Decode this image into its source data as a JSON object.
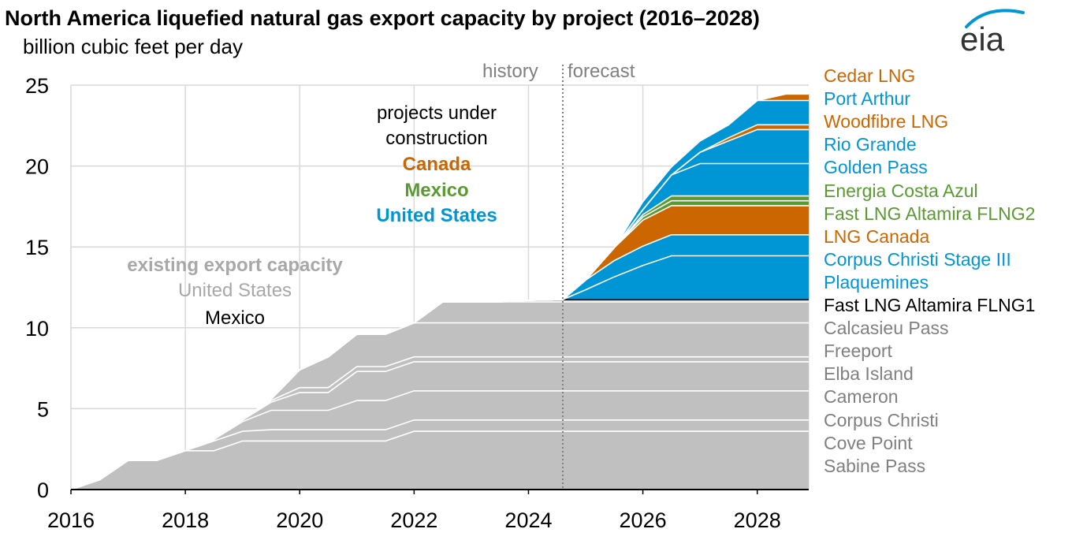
{
  "title": "North America liquefied natural gas export capacity by project (2016–2028)",
  "subtitle": "billion cubic feet per day",
  "logo_text": "eia",
  "colors": {
    "canada": "#cc6600",
    "mexico": "#5a9a32",
    "united_states": "#0096d6",
    "existing": "#c0c0c0",
    "existing_label": "#a8a8a8",
    "grid": "#d9d9d9",
    "divider": "#808080",
    "legend_gray": "#808080"
  },
  "annotations": {
    "history": "history",
    "forecast": "forecast",
    "under_construction_line1": "projects under",
    "under_construction_line2": "construction",
    "canada": "Canada",
    "mexico": "Mexico",
    "united_states": "United States",
    "existing_heading": "existing export capacity",
    "existing_us": "United States",
    "existing_mexico": "Mexico"
  },
  "chart_data": {
    "type": "area",
    "stacked": true,
    "title": "North America liquefied natural gas export capacity by project (2016–2028)",
    "ylabel": "billion cubic feet per day",
    "xlim": [
      2016,
      2028.9
    ],
    "ylim": [
      0,
      25
    ],
    "x_ticks": [
      "2016",
      "2018",
      "2020",
      "2022",
      "2024",
      "2026",
      "2028"
    ],
    "y_ticks": [
      "0",
      "5",
      "10",
      "15",
      "20",
      "25"
    ],
    "grid": true,
    "history_forecast_divider": 2024.6,
    "x": [
      2016,
      2016.5,
      2017,
      2017.5,
      2018,
      2018.5,
      2019,
      2019.5,
      2020,
      2020.5,
      2021,
      2021.5,
      2022,
      2022.5,
      2023,
      2023.5,
      2024,
      2024.6,
      2025,
      2025.5,
      2026,
      2026.5,
      2027,
      2027.5,
      2028,
      2028.5,
      2028.9
    ],
    "series": [
      {
        "name": "Sabine Pass",
        "group": "existing",
        "values": [
          0,
          0.6,
          1.8,
          1.8,
          2.4,
          2.4,
          3.0,
          3.0,
          3.0,
          3.0,
          3.0,
          3.0,
          3.6,
          3.6,
          3.6,
          3.6,
          3.6,
          3.6,
          3.6,
          3.6,
          3.6,
          3.6,
          3.6,
          3.6,
          3.6,
          3.6,
          3.6
        ]
      },
      {
        "name": "Cove Point",
        "group": "existing",
        "values": [
          0,
          0,
          0,
          0,
          0,
          0.6,
          0.6,
          0.7,
          0.7,
          0.7,
          0.7,
          0.7,
          0.7,
          0.7,
          0.7,
          0.7,
          0.7,
          0.7,
          0.7,
          0.7,
          0.7,
          0.7,
          0.7,
          0.7,
          0.7,
          0.7,
          0.7
        ]
      },
      {
        "name": "Corpus Christi",
        "group": "existing",
        "values": [
          0,
          0,
          0,
          0,
          0,
          0.1,
          0.6,
          1.2,
          1.2,
          1.2,
          1.8,
          1.8,
          1.8,
          1.8,
          1.8,
          1.8,
          1.8,
          1.8,
          1.8,
          1.8,
          1.8,
          1.8,
          1.8,
          1.8,
          1.8,
          1.8,
          1.8
        ]
      },
      {
        "name": "Cameron",
        "group": "existing",
        "values": [
          0,
          0,
          0,
          0,
          0,
          0,
          0.1,
          0.5,
          1.1,
          1.1,
          1.8,
          1.8,
          1.8,
          1.8,
          1.8,
          1.8,
          1.8,
          1.8,
          1.8,
          1.8,
          1.8,
          1.8,
          1.8,
          1.8,
          1.8,
          1.8,
          1.8
        ]
      },
      {
        "name": "Elba Island",
        "group": "existing",
        "values": [
          0,
          0,
          0,
          0,
          0,
          0,
          0,
          0.1,
          0.3,
          0.3,
          0.3,
          0.3,
          0.3,
          0.3,
          0.3,
          0.3,
          0.3,
          0.3,
          0.3,
          0.3,
          0.3,
          0.3,
          0.3,
          0.3,
          0.3,
          0.3,
          0.3
        ]
      },
      {
        "name": "Freeport",
        "group": "existing",
        "values": [
          0,
          0,
          0,
          0,
          0,
          0,
          0,
          0.1,
          1.1,
          1.9,
          2.0,
          2.0,
          2.1,
          2.1,
          2.1,
          2.1,
          2.1,
          2.1,
          2.1,
          2.1,
          2.1,
          2.1,
          2.1,
          2.1,
          2.1,
          2.1,
          2.1
        ]
      },
      {
        "name": "Calcasieu Pass",
        "group": "existing",
        "values": [
          0,
          0,
          0,
          0,
          0,
          0,
          0,
          0,
          0,
          0,
          0,
          0,
          0,
          1.3,
          1.3,
          1.3,
          1.3,
          1.3,
          1.3,
          1.3,
          1.3,
          1.3,
          1.3,
          1.3,
          1.3,
          1.3,
          1.3
        ]
      },
      {
        "name": "Fast LNG Altamira FLNG1",
        "group": "existing-mexico",
        "values": [
          0,
          0,
          0,
          0,
          0,
          0,
          0,
          0,
          0,
          0,
          0,
          0,
          0,
          0,
          0,
          0,
          0.1,
          0.15,
          0.15,
          0.15,
          0.15,
          0.15,
          0.15,
          0.15,
          0.15,
          0.15,
          0.15
        ]
      },
      {
        "name": "Plaquemines",
        "group": "us",
        "values": [
          0,
          0,
          0,
          0,
          0,
          0,
          0,
          0,
          0,
          0,
          0,
          0,
          0,
          0,
          0,
          0,
          0,
          0,
          0.6,
          1.4,
          2.1,
          2.7,
          2.7,
          2.7,
          2.7,
          2.7,
          2.7
        ]
      },
      {
        "name": "Corpus Christi Stage III",
        "group": "us",
        "values": [
          0,
          0,
          0,
          0,
          0,
          0,
          0,
          0,
          0,
          0,
          0,
          0,
          0,
          0,
          0,
          0,
          0,
          0,
          0.6,
          1.0,
          1.2,
          1.3,
          1.3,
          1.3,
          1.3,
          1.3,
          1.3
        ]
      },
      {
        "name": "LNG Canada",
        "group": "canada",
        "values": [
          0,
          0,
          0,
          0,
          0,
          0,
          0,
          0,
          0,
          0,
          0,
          0,
          0,
          0,
          0,
          0,
          0,
          0,
          0,
          0.8,
          1.6,
          1.8,
          1.8,
          1.8,
          1.8,
          1.8,
          1.8
        ]
      },
      {
        "name": "Fast LNG Altamira FLNG2",
        "group": "mexico",
        "values": [
          0,
          0,
          0,
          0,
          0,
          0,
          0,
          0,
          0,
          0,
          0,
          0,
          0,
          0,
          0,
          0,
          0,
          0,
          0,
          0,
          0.2,
          0.3,
          0.3,
          0.3,
          0.3,
          0.3,
          0.3
        ]
      },
      {
        "name": "Energia Costa Azul",
        "group": "mexico",
        "values": [
          0,
          0,
          0,
          0,
          0,
          0,
          0,
          0,
          0,
          0,
          0,
          0,
          0,
          0,
          0,
          0,
          0,
          0,
          0,
          0,
          0.15,
          0.3,
          0.3,
          0.3,
          0.3,
          0.3,
          0.3
        ]
      },
      {
        "name": "Golden Pass",
        "group": "us",
        "values": [
          0,
          0,
          0,
          0,
          0,
          0,
          0,
          0,
          0,
          0,
          0,
          0,
          0,
          0,
          0,
          0,
          0,
          0,
          0,
          0,
          0.3,
          1.3,
          2.0,
          2.0,
          2.0,
          2.0,
          2.0
        ]
      },
      {
        "name": "Rio Grande",
        "group": "us",
        "values": [
          0,
          0,
          0,
          0,
          0,
          0,
          0,
          0,
          0,
          0,
          0,
          0,
          0,
          0,
          0,
          0,
          0,
          0,
          0,
          0,
          0,
          0,
          0.7,
          1.4,
          2.1,
          2.1,
          2.1
        ]
      },
      {
        "name": "Woodfibre LNG",
        "group": "canada",
        "values": [
          0,
          0,
          0,
          0,
          0,
          0,
          0,
          0,
          0,
          0,
          0,
          0,
          0,
          0,
          0,
          0,
          0,
          0,
          0,
          0,
          0,
          0,
          0,
          0.2,
          0.3,
          0.3,
          0.3
        ]
      },
      {
        "name": "Port Arthur",
        "group": "us",
        "values": [
          0,
          0,
          0,
          0,
          0,
          0,
          0,
          0,
          0,
          0,
          0,
          0,
          0,
          0,
          0,
          0,
          0,
          0,
          0,
          0,
          0.5,
          0.5,
          0.7,
          0.8,
          1.5,
          1.5,
          1.5
        ]
      },
      {
        "name": "Cedar LNG",
        "group": "canada",
        "values": [
          0,
          0,
          0,
          0,
          0,
          0,
          0,
          0,
          0,
          0,
          0,
          0,
          0,
          0,
          0,
          0,
          0,
          0,
          0,
          0,
          0,
          0,
          0,
          0,
          0,
          0.4,
          0.4
        ]
      }
    ],
    "legend_order": [
      "Cedar LNG",
      "Port Arthur",
      "Woodfibre LNG",
      "Rio Grande",
      "Golden Pass",
      "Energia Costa Azul",
      "Fast LNG Altamira FLNG2",
      "LNG Canada",
      "Corpus Christi Stage III",
      "Plaquemines",
      "Fast LNG Altamira FLNG1",
      "Calcasieu Pass",
      "Freeport",
      "Elba Island",
      "Cameron",
      "Corpus Christi",
      "Cove Point",
      "Sabine Pass"
    ],
    "legend_placement": "right"
  }
}
